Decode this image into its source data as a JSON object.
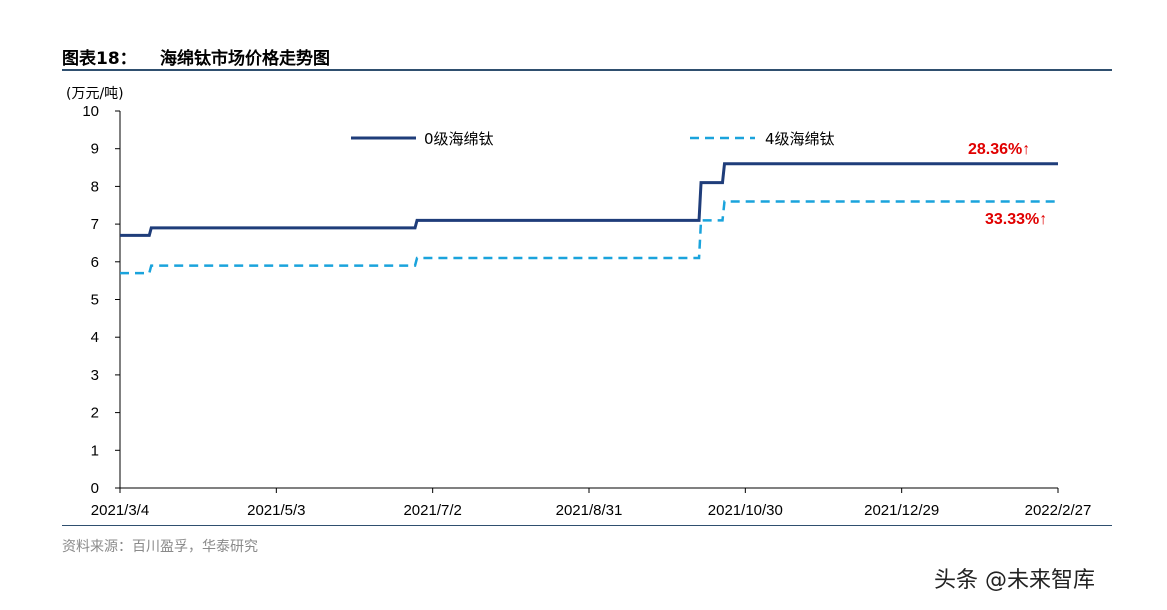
{
  "header": {
    "figure_label": "图表18：",
    "figure_title": "海绵钛市场价格走势图"
  },
  "footer": {
    "source": "资料来源：百川盈孚，华泰研究"
  },
  "watermark": "头条 @未来智库",
  "colors": {
    "series_0": "#1f3d7a",
    "series_4": "#1aa3dc",
    "annotation": "#e00000",
    "rule": "#2f4f6f"
  },
  "chart_data": {
    "type": "line",
    "title": "",
    "ylabel": "(万元/吨)",
    "xlabel": "",
    "ylim": [
      0,
      10
    ],
    "yticks": [
      0,
      1,
      2,
      3,
      4,
      5,
      6,
      7,
      8,
      9,
      10
    ],
    "xlim": [
      "2021-03-04",
      "2022-02-27"
    ],
    "xticks": [
      "2021/3/4",
      "2021/5/3",
      "2021/7/2",
      "2021/8/31",
      "2021/10/30",
      "2021/12/29",
      "2022/2/27"
    ],
    "step": true,
    "legend_position": "top",
    "series": [
      {
        "name": "0级海绵钛",
        "style": "solid",
        "points": [
          [
            "2021-03-04",
            6.7
          ],
          [
            "2021-03-16",
            6.9
          ],
          [
            "2021-06-26",
            7.1
          ],
          [
            "2021-10-13",
            8.1
          ],
          [
            "2021-10-22",
            8.6
          ],
          [
            "2022-02-27",
            8.6
          ]
        ]
      },
      {
        "name": "4级海绵钛",
        "style": "dashed",
        "points": [
          [
            "2021-03-04",
            5.7
          ],
          [
            "2021-03-16",
            5.9
          ],
          [
            "2021-06-26",
            6.1
          ],
          [
            "2021-10-13",
            7.1
          ],
          [
            "2021-10-22",
            7.6
          ],
          [
            "2022-02-27",
            7.6
          ]
        ]
      }
    ],
    "annotations": [
      {
        "text": "28.36%↑",
        "series": "0级海绵钛"
      },
      {
        "text": "33.33%↑",
        "series": "4级海绵钛"
      }
    ]
  }
}
